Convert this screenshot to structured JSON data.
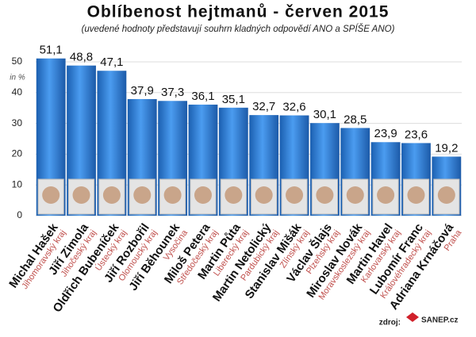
{
  "chart_data": {
    "type": "bar",
    "title": "Oblíbenost hejtmanů - červen 2015",
    "subtitle": "(uvedené hodnoty představují souhrn kladných odpovědí ANO a SPÍŠE ANO)",
    "y_label": "in %",
    "categories": [
      "Michal Hašek",
      "Jiří Zimola",
      "Oldřich Bubeníček",
      "Jiří Rozbořil",
      "Jiří Běhounek",
      "Miloš Petera",
      "Martin Půta",
      "Martin Netolický",
      "Stanislav Mišák",
      "Václav Šlajs",
      "Miroslav Novák",
      "Martin Havel",
      "Lubomír Franc",
      "Adriana Krnáčová"
    ],
    "regions": [
      "Jihomoravský kraj",
      "Jihočeský kraj",
      "Ústecký kraj",
      "Olomoucký kraj",
      "Vysočina",
      "Středočeský kraj",
      "Liberecký kraj",
      "Pardubický kraj",
      "Zlínský kraj",
      "Plzeňský kraj",
      "Moravskoslezský kraj",
      "Karlovarský kraj",
      "Královéhradecký kraj",
      "Praha"
    ],
    "values": [
      51.1,
      48.8,
      47.1,
      37.9,
      37.3,
      36.1,
      35.1,
      32.7,
      32.6,
      30.1,
      28.5,
      23.9,
      23.6,
      19.2
    ],
    "value_labels": [
      "51,1",
      "48,8",
      "47,1",
      "37,9",
      "37,3",
      "36,1",
      "35,1",
      "32,7",
      "32,6",
      "30,1",
      "28,5",
      "23,9",
      "23,6",
      "19,2"
    ],
    "color": "#2f7fd6",
    "ylim": [
      0,
      55
    ],
    "yticks": [
      0,
      10,
      20,
      30,
      40,
      50
    ],
    "grid": true,
    "source": "zdroj:",
    "logo": "SANEP.cz"
  }
}
